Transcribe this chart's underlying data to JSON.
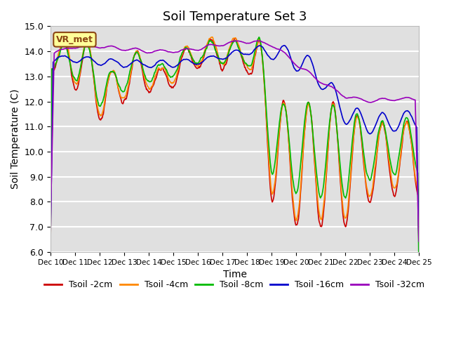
{
  "title": "Soil Temperature Set 3",
  "xlabel": "Time",
  "ylabel": "Soil Temperature (C)",
  "ylim": [
    6.0,
    15.0
  ],
  "yticks": [
    6.0,
    7.0,
    8.0,
    9.0,
    10.0,
    11.0,
    12.0,
    13.0,
    14.0,
    15.0
  ],
  "colors": {
    "Tsoil -2cm": "#cc0000",
    "Tsoil -4cm": "#ff8800",
    "Tsoil -8cm": "#00bb00",
    "Tsoil -16cm": "#0000cc",
    "Tsoil -32cm": "#9900bb"
  },
  "axes_facecolor": "#e0e0e0",
  "grid_color": "#ffffff",
  "annotation_text": "VR_met",
  "annotation_bg": "#ffff99",
  "annotation_border": "#8B4513",
  "num_points": 720
}
